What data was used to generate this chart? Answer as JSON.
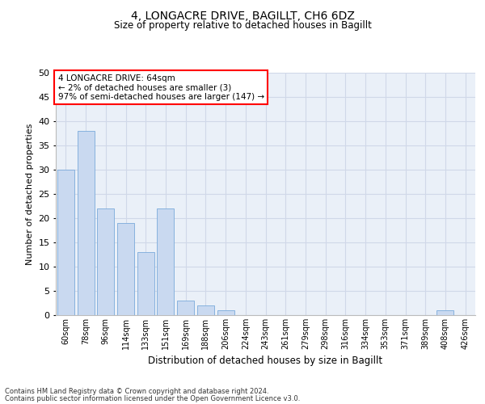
{
  "title_line1": "4, LONGACRE DRIVE, BAGILLT, CH6 6DZ",
  "title_line2": "Size of property relative to detached houses in Bagillt",
  "xlabel": "Distribution of detached houses by size in Bagillt",
  "ylabel": "Number of detached properties",
  "footer_line1": "Contains HM Land Registry data © Crown copyright and database right 2024.",
  "footer_line2": "Contains public sector information licensed under the Open Government Licence v3.0.",
  "categories": [
    "60sqm",
    "78sqm",
    "96sqm",
    "114sqm",
    "133sqm",
    "151sqm",
    "169sqm",
    "188sqm",
    "206sqm",
    "224sqm",
    "243sqm",
    "261sqm",
    "279sqm",
    "298sqm",
    "316sqm",
    "334sqm",
    "353sqm",
    "371sqm",
    "389sqm",
    "408sqm",
    "426sqm"
  ],
  "values": [
    30,
    38,
    22,
    19,
    13,
    22,
    3,
    2,
    1,
    0,
    0,
    0,
    0,
    0,
    0,
    0,
    0,
    0,
    0,
    1,
    0
  ],
  "bar_color": "#c9d9f0",
  "bar_edge_color": "#7aaadb",
  "annotation_box_text": "4 LONGACRE DRIVE: 64sqm\n← 2% of detached houses are smaller (3)\n97% of semi-detached houses are larger (147) →",
  "annotation_box_edge_color": "red",
  "annotation_box_facecolor": "white",
  "ylim": [
    0,
    50
  ],
  "yticks": [
    0,
    5,
    10,
    15,
    20,
    25,
    30,
    35,
    40,
    45,
    50
  ],
  "grid_color": "#d0d8e8",
  "plot_bg_color": "#eaf0f8",
  "title1_fontsize": 10,
  "title2_fontsize": 8.5,
  "ylabel_fontsize": 8,
  "xlabel_fontsize": 8.5,
  "tick_fontsize": 7,
  "footer_fontsize": 6,
  "annot_fontsize": 7.5
}
